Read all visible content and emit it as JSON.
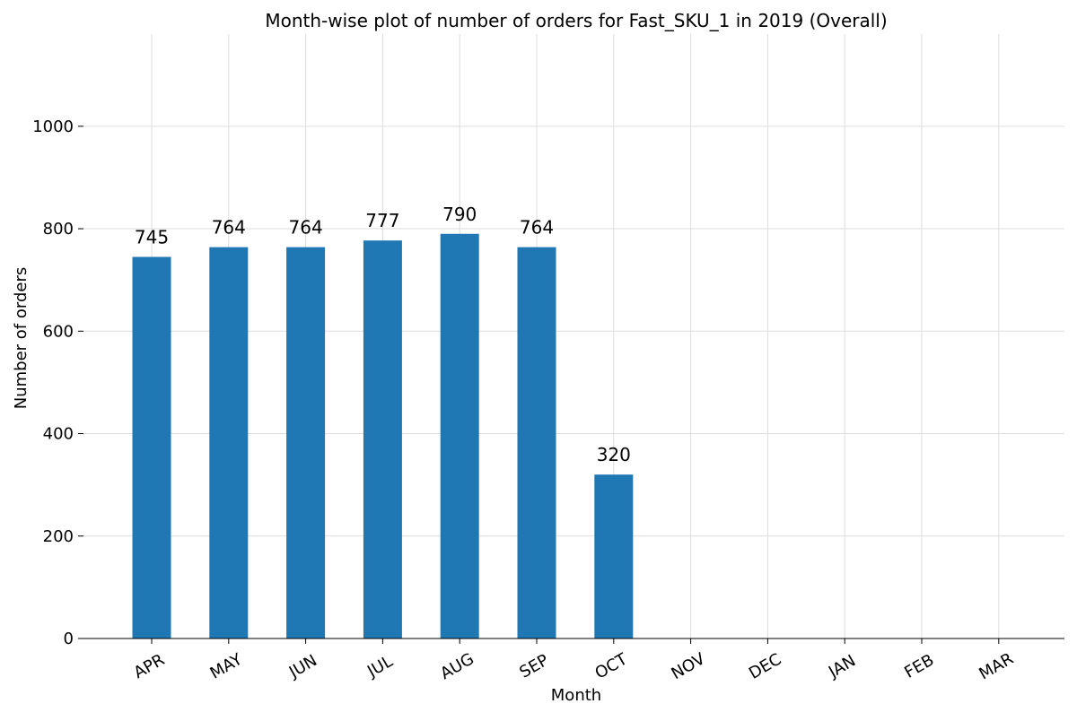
{
  "chart_data": {
    "type": "bar",
    "title": "Month-wise plot of number of orders for Fast_SKU_1 in 2019 (Overall)",
    "xlabel": "Month",
    "ylabel": "Number of orders",
    "categories": [
      "APR",
      "MAY",
      "JUN",
      "JUL",
      "AUG",
      "SEP",
      "OCT",
      "NOV",
      "DEC",
      "JAN",
      "FEB",
      "MAR"
    ],
    "values": [
      745,
      764,
      764,
      777,
      790,
      764,
      320,
      null,
      null,
      null,
      null,
      null
    ],
    "data_labels": [
      "745",
      "764",
      "764",
      "777",
      "790",
      "764",
      "320",
      "",
      "",
      "",
      "",
      ""
    ],
    "yticks": [
      0,
      200,
      400,
      600,
      800,
      1000
    ],
    "ylim": [
      0,
      1180
    ],
    "grid": true,
    "x_tick_rotation_deg": -30,
    "colors": {
      "bar": "#1f77b4",
      "grid": "#dddddd",
      "axis": "#000000"
    }
  }
}
